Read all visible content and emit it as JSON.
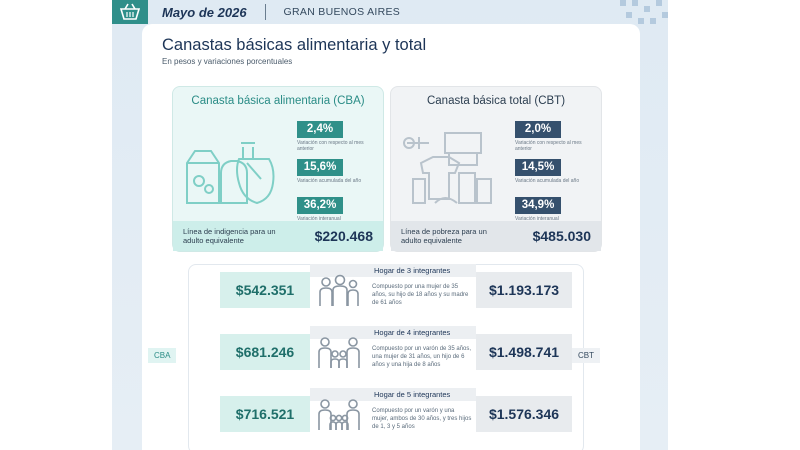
{
  "header": {
    "date": "Mayo de 2026",
    "region": "GRAN BUENOS AIRES"
  },
  "title": "Canastas básicas alimentaria y total",
  "subtitle": "En pesos y variaciones porcentuales",
  "cba": {
    "title": "Canasta básica alimentaria (CBA)",
    "stats": [
      {
        "value": "2,4%",
        "caption": "Variación con respecto al mes anterior"
      },
      {
        "value": "15,6%",
        "caption": "Variación acumulada del año"
      },
      {
        "value": "36,2%",
        "caption": "Variación interanual"
      }
    ],
    "footer_label": "Línea de indigencia para un adulto equivalente",
    "footer_value": "$220.468"
  },
  "cbt": {
    "title": "Canasta básica total (CBT)",
    "stats": [
      {
        "value": "2,0%",
        "caption": "Variación con respecto al mes anterior"
      },
      {
        "value": "14,5%",
        "caption": "Variación acumulada del año"
      },
      {
        "value": "34,9%",
        "caption": "Variación interanual"
      }
    ],
    "footer_label": "Línea de pobreza para un adulto equivalente",
    "footer_value": "$485.030"
  },
  "households": {
    "cba_tag": "CBA",
    "cbt_tag": "CBT",
    "rows": [
      {
        "title": "Hogar de 3 integrantes",
        "description": "Compuesto por una mujer de 35 años, su hijo de 18 años y su madre de 61 años",
        "cba": "$542.351",
        "cbt": "$1.193.173"
      },
      {
        "title": "Hogar de 4 integrantes",
        "description": "Compuesto por un varón de 35 años, una mujer de 31 años, un hijo de 6 años y una hija de 8 años",
        "cba": "$681.246",
        "cbt": "$1.498.741"
      },
      {
        "title": "Hogar de 5 integrantes",
        "description": "Compuesto por un varón y una mujer, ambos de 30 años, y tres hijos de 1, 3 y 5 años",
        "cba": "$716.521",
        "cbt": "$1.576.346"
      }
    ]
  },
  "colors": {
    "teal": "#2f9089",
    "navy": "#35506d",
    "title": "#1d3557"
  }
}
